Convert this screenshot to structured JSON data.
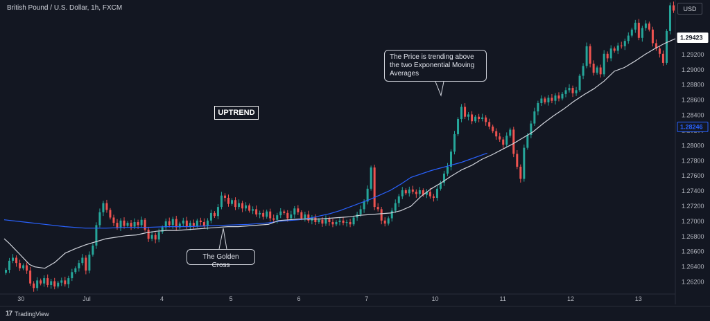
{
  "header": {
    "symbol": "British Pound / U.S. Dollar, 1h, FXCM",
    "currency": "USD"
  },
  "footer": {
    "brand": "TradingView",
    "logo_icon": "tradingview-logo-icon"
  },
  "annotations": {
    "uptrend": "UPTREND",
    "price_note": "The Price is trending above the two Exponential Moving Averages",
    "cross_note": "The Golden Cross"
  },
  "colors": {
    "background": "#131722",
    "up": "#26a69a",
    "down": "#ef5350",
    "ema_fast": "#d1d4dc",
    "ema_slow": "#2962ff"
  },
  "chart_data": {
    "type": "candlestick",
    "y_ticks": [
      "1.29200",
      "1.29000",
      "1.28800",
      "1.28600",
      "1.28400",
      "1.28200",
      "1.28000",
      "1.27800",
      "1.27600",
      "1.27400",
      "1.27200",
      "1.27000",
      "1.26800",
      "1.26600",
      "1.26400",
      "1.26200"
    ],
    "ylim": [
      1.2605,
      1.2992
    ],
    "x_ticks": [
      "30",
      "Jul",
      "4",
      "5",
      "6",
      "7",
      "10",
      "11",
      "12",
      "13"
    ],
    "x_tick_positions": [
      2.5,
      12.3,
      23.5,
      33.8,
      43.9,
      54.0,
      64.2,
      74.3,
      84.4,
      94.5
    ],
    "last_price": "1.29423",
    "ema_last": "1.28246",
    "close": [
      1.2636,
      1.2648,
      1.2652,
      1.2645,
      1.2638,
      1.2642,
      1.2635,
      1.2618,
      1.2612,
      1.2622,
      1.2618,
      1.2625,
      1.2616,
      1.2621,
      1.2614,
      1.2619,
      1.2622,
      1.2617,
      1.2625,
      1.2633,
      1.2638,
      1.2645,
      1.2652,
      1.2635,
      1.2656,
      1.2668,
      1.2695,
      1.2712,
      1.2724,
      1.2715,
      1.2705,
      1.2698,
      1.2692,
      1.2701,
      1.2694,
      1.2698,
      1.2693,
      1.2699,
      1.2695,
      1.2702,
      1.2689,
      1.2677,
      1.2682,
      1.2676,
      1.2686,
      1.2692,
      1.27,
      1.2695,
      1.2703,
      1.2692,
      1.2697,
      1.2701,
      1.2693,
      1.2698,
      1.2694,
      1.2701,
      1.2699,
      1.2694,
      1.2701,
      1.2711,
      1.2707,
      1.2719,
      1.2734,
      1.2731,
      1.2723,
      1.2728,
      1.2719,
      1.2724,
      1.2717,
      1.2721,
      1.2714,
      1.2716,
      1.2709,
      1.2711,
      1.2706,
      1.2713,
      1.2704,
      1.2702,
      1.2708,
      1.2713,
      1.2711,
      1.2704,
      1.2709,
      1.2717,
      1.2712,
      1.2704,
      1.2709,
      1.2701,
      1.2705,
      1.2699,
      1.2702,
      1.2697,
      1.2703,
      1.2699,
      1.2696,
      1.2699,
      1.2701,
      1.2698,
      1.2699,
      1.2696,
      1.2705,
      1.2709,
      1.2716,
      1.2726,
      1.2743,
      1.2771,
      1.2719,
      1.2716,
      1.2701,
      1.2697,
      1.2704,
      1.2714,
      1.2724,
      1.2733,
      1.2741,
      1.2737,
      1.2742,
      1.2739,
      1.2736,
      1.2741,
      1.2735,
      1.2739,
      1.2733,
      1.2731,
      1.2743,
      1.2751,
      1.2763,
      1.2772,
      1.2792,
      1.2815,
      1.2835,
      1.2851,
      1.2838,
      1.2841,
      1.2832,
      1.2838,
      1.2835,
      1.2837,
      1.2831,
      1.2825,
      1.2819,
      1.2812,
      1.2808,
      1.2801,
      1.2813,
      1.2821,
      1.2789,
      1.2772,
      1.2756,
      1.2797,
      1.2814,
      1.2829,
      1.2845,
      1.2856,
      1.2862,
      1.2857,
      1.2863,
      1.2859,
      1.2866,
      1.2862,
      1.2868,
      1.2873,
      1.2876,
      1.2869,
      1.2873,
      1.2892,
      1.2905,
      1.2931,
      1.2908,
      1.2896,
      1.2903,
      1.2894,
      1.2921,
      1.2915,
      1.2928,
      1.2925,
      1.2932,
      1.2931,
      1.2938,
      1.2945,
      1.2953,
      1.2962,
      1.2942,
      1.2955,
      1.2961,
      1.2953,
      1.2935,
      1.2928,
      1.2921,
      1.2909,
      1.2951,
      1.2985,
      1.2978
    ],
    "ema_fast": [
      1.2677,
      1.2671,
      1.2664,
      1.2657,
      1.265,
      1.2643,
      1.264,
      1.2638,
      1.2646,
      1.2658,
      1.2664,
      1.2669,
      1.2673,
      1.2677,
      1.2679,
      1.2681,
      1.2682,
      1.2685,
      1.2687,
      1.2688,
      1.2688,
      1.2689,
      1.269,
      1.2691,
      1.2692,
      1.2693,
      1.2693,
      1.2694,
      1.2695,
      1.2696,
      1.2701,
      1.2702,
      1.2703,
      1.2703,
      1.2703,
      1.2704,
      1.2705,
      1.2706,
      1.2708,
      1.2709,
      1.271,
      1.2711,
      1.2714,
      1.272,
      1.2733,
      1.2743,
      1.2751,
      1.276,
      1.2768,
      1.2774,
      1.2782,
      1.2788,
      1.2795,
      1.2802,
      1.281,
      1.2818,
      1.2829,
      1.2839,
      1.2848,
      1.2858,
      1.2867,
      1.2875,
      1.2885,
      1.2898,
      1.2903,
      1.2911,
      1.292,
      1.2928,
      1.2935,
      1.2941
    ],
    "ema_fast_x": [
      0,
      1,
      2,
      3,
      4,
      5,
      6,
      8,
      10,
      12,
      14,
      16,
      18,
      20,
      22,
      24,
      26,
      28,
      30,
      32,
      34,
      36,
      38,
      40,
      42,
      44,
      46,
      48,
      50,
      52,
      54,
      56,
      58,
      60,
      62,
      64,
      66,
      68,
      70,
      72,
      74,
      76,
      78,
      80,
      82,
      84,
      86,
      88,
      90,
      92,
      94,
      96,
      98,
      100,
      102,
      104,
      106,
      108,
      110,
      112,
      114,
      116,
      118,
      120,
      122,
      124,
      126,
      128,
      130,
      132
    ],
    "ema_slow": [
      1.2702,
      1.2699,
      1.2696,
      1.2693,
      1.2691,
      1.2691,
      1.2692,
      1.2692,
      1.2693,
      1.2693,
      1.2694,
      1.2695,
      1.2696,
      1.2698,
      1.27,
      1.2701,
      1.2702,
      1.2704,
      1.2707,
      1.271,
      1.2714,
      1.2719,
      1.2724,
      1.2729,
      1.2735,
      1.2741,
      1.2749,
      1.2758,
      1.2767,
      1.2778,
      1.279
    ],
    "ema_slow_x": [
      0,
      4,
      8,
      12,
      16,
      20,
      24,
      28,
      32,
      36,
      40,
      44,
      48,
      52,
      54,
      56,
      58,
      60,
      62,
      64,
      66,
      68,
      70,
      72,
      74,
      76,
      78,
      80,
      84,
      90,
      95
    ]
  }
}
